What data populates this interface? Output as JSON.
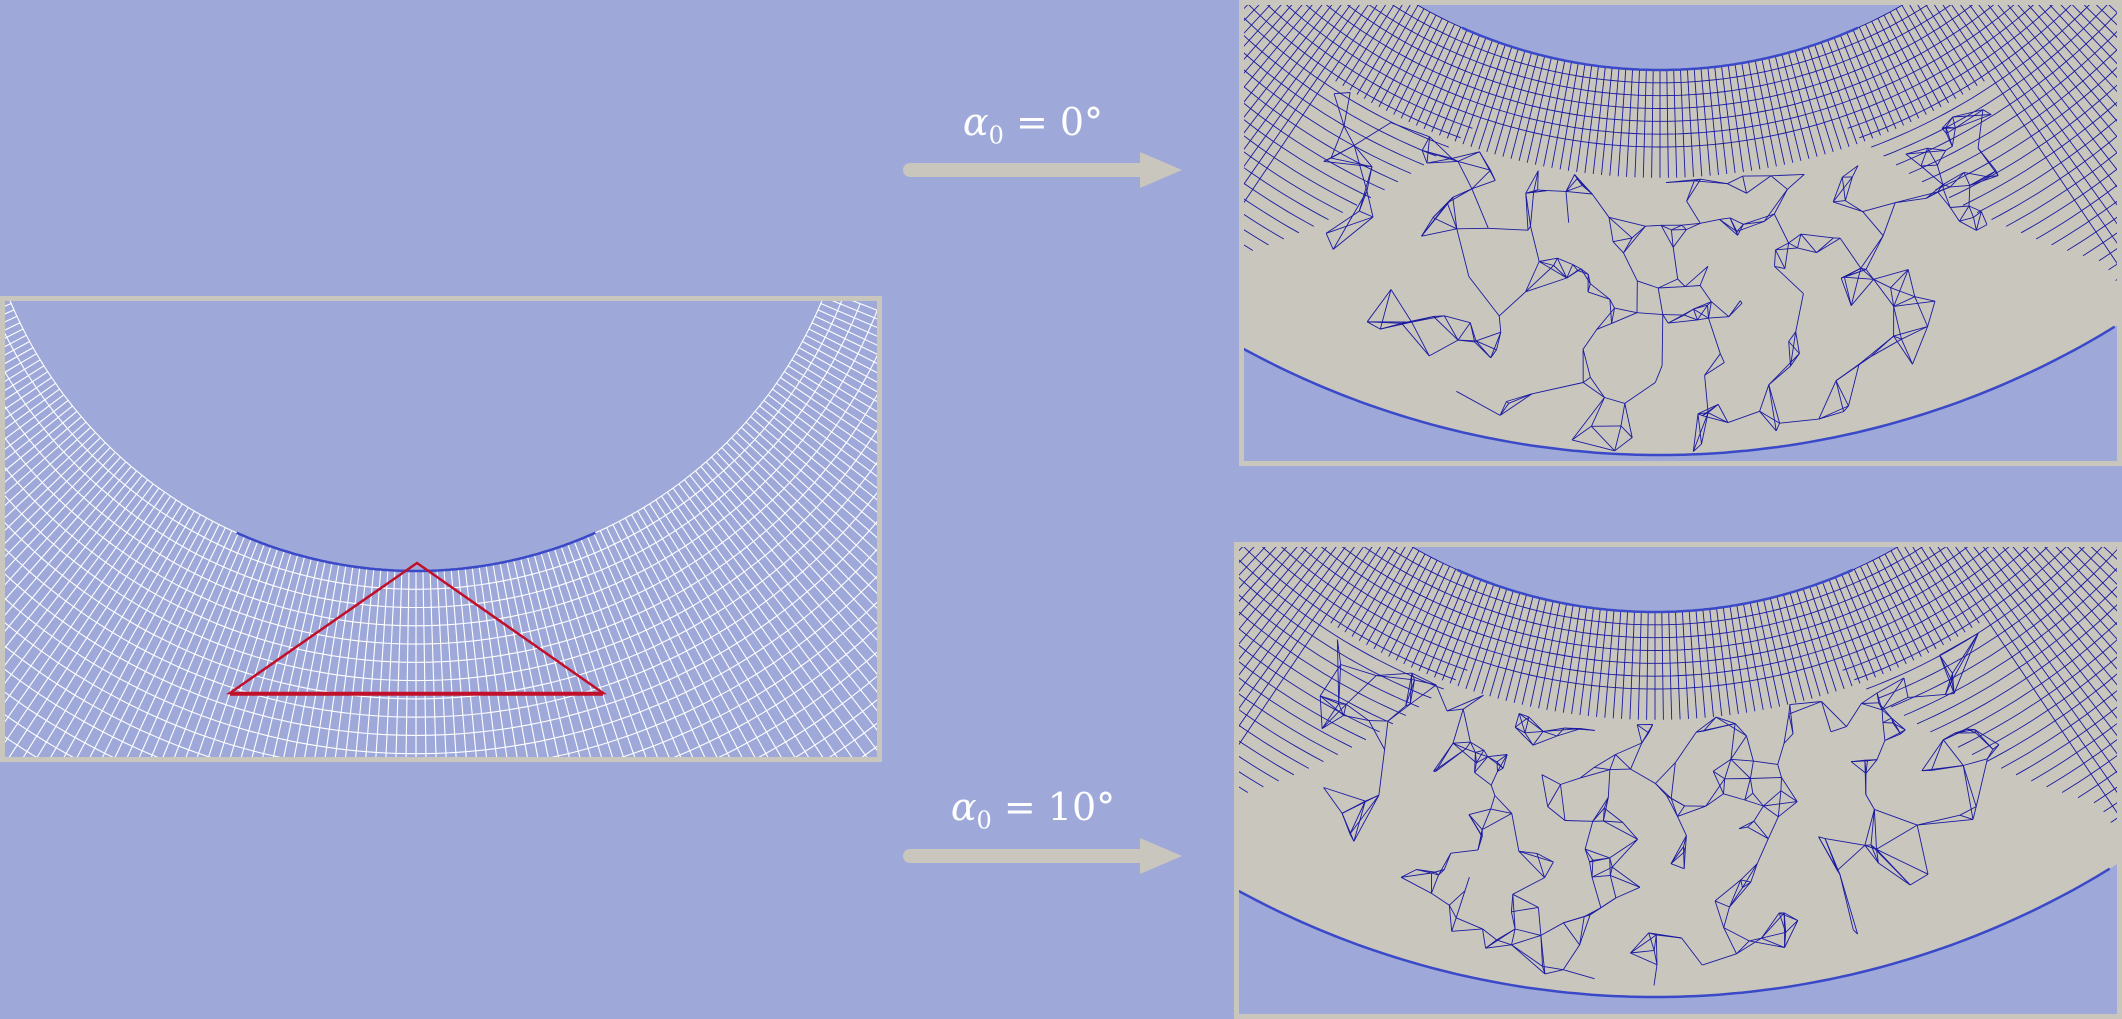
{
  "transforms": [
    {
      "symbol": "α",
      "subscript": "0",
      "rest": " = 0°"
    },
    {
      "symbol": "α",
      "subscript": "0",
      "rest": " = 10°"
    }
  ],
  "colors": {
    "background": "#9ea9da",
    "frame": "#c9c6bd",
    "mesh_fill": "#c9c6bd",
    "mesh_line": "#1a1aa0",
    "boundary": "#3a49c8",
    "input_grid": "#ffffff",
    "highlight": "#c0102a",
    "arrow": "#c9c6bd"
  },
  "icons": [
    "arrow-right-icon",
    "arrow-right-icon"
  ]
}
